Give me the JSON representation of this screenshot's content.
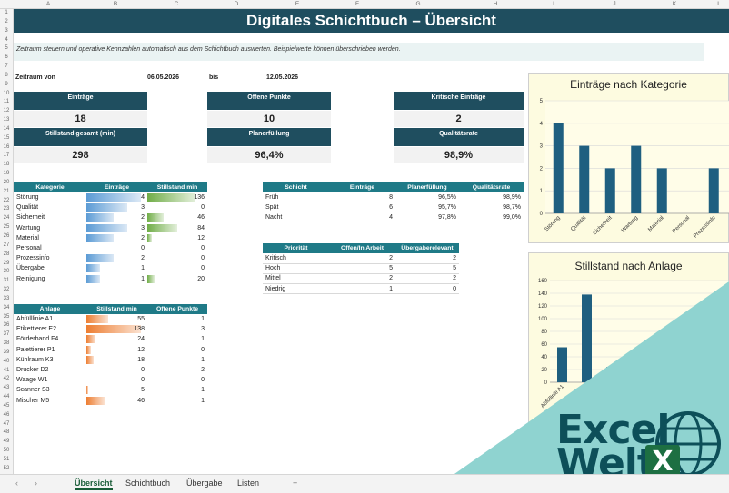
{
  "columns": [
    "A",
    "B",
    "C",
    "D",
    "E",
    "F",
    "G",
    "H",
    "I",
    "J",
    "K",
    "L"
  ],
  "rows": [
    "1",
    "2",
    "3",
    "4",
    "5",
    "6",
    "7",
    "8",
    "9",
    "10",
    "11",
    "12",
    "13",
    "14",
    "15",
    "16",
    "17",
    "18",
    "19",
    "20",
    "21",
    "22",
    "23",
    "24",
    "25",
    "26",
    "27",
    "28",
    "29",
    "30",
    "31",
    "32",
    "33",
    "34",
    "35",
    "36",
    "37",
    "38",
    "39",
    "40",
    "41",
    "42",
    "43",
    "44",
    "45",
    "46",
    "47",
    "48",
    "49",
    "50",
    "51",
    "52"
  ],
  "title": "Digitales Schichtbuch – Übersicht",
  "description": "Zeitraum steuern und operative Kennzahlen automatisch aus dem Schichtbuch auswerten. Beispielwerte können überschrieben werden.",
  "period": {
    "label": "Zeitraum von",
    "from": "06.05.2026",
    "to_label": "bis",
    "to": "12.05.2026"
  },
  "kpis": [
    {
      "label": "Einträge",
      "value": "18"
    },
    {
      "label": "Offene Punkte",
      "value": "10"
    },
    {
      "label": "Kritische Einträge",
      "value": "2"
    },
    {
      "label": "Stillstand gesamt (min)",
      "value": "298"
    },
    {
      "label": "Planerfüllung",
      "value": "96,4%"
    },
    {
      "label": "Qualitätsrate",
      "value": "98,9%"
    }
  ],
  "category_table": {
    "headers": [
      "Kategorie",
      "Einträge",
      "Stillstand min"
    ],
    "rows": [
      {
        "name": "Störung",
        "entries": 4,
        "stop": 136
      },
      {
        "name": "Qualität",
        "entries": 3,
        "stop": 0
      },
      {
        "name": "Sicherheit",
        "entries": 2,
        "stop": 46
      },
      {
        "name": "Wartung",
        "entries": 3,
        "stop": 84
      },
      {
        "name": "Material",
        "entries": 2,
        "stop": 12
      },
      {
        "name": "Personal",
        "entries": 0,
        "stop": 0
      },
      {
        "name": "Prozessinfo",
        "entries": 2,
        "stop": 0
      },
      {
        "name": "Übergabe",
        "entries": 1,
        "stop": 0
      },
      {
        "name": "Reinigung",
        "entries": 1,
        "stop": 20
      }
    ]
  },
  "plant_table": {
    "headers": [
      "Anlage",
      "Stillstand min",
      "Offene Punkte"
    ],
    "rows": [
      {
        "name": "Abfülllinie A1",
        "stop": 55,
        "open": 1
      },
      {
        "name": "Etikettierer E2",
        "stop": 138,
        "open": 3
      },
      {
        "name": "Förderband F4",
        "stop": 24,
        "open": 1
      },
      {
        "name": "Palettierer P1",
        "stop": 12,
        "open": 0
      },
      {
        "name": "Kühlraum K3",
        "stop": 18,
        "open": 1
      },
      {
        "name": "Drucker D2",
        "stop": 0,
        "open": 2
      },
      {
        "name": "Waage W1",
        "stop": 0,
        "open": 0
      },
      {
        "name": "Scanner S3",
        "stop": 5,
        "open": 1
      },
      {
        "name": "Mischer M5",
        "stop": 46,
        "open": 1
      }
    ]
  },
  "shift_table": {
    "headers": [
      "Schicht",
      "Einträge",
      "Planerfüllung",
      "Qualitätsrate"
    ],
    "rows": [
      [
        "Früh",
        "8",
        "96,5%",
        "98,9%"
      ],
      [
        "Spät",
        "6",
        "95,7%",
        "98,7%"
      ],
      [
        "Nacht",
        "4",
        "97,8%",
        "99,0%"
      ]
    ]
  },
  "priority_table": {
    "headers": [
      "Priorität",
      "Offen/In Arbeit",
      "Übergaberelevant"
    ],
    "rows": [
      [
        "Kritisch",
        "2",
        "2"
      ],
      [
        "Hoch",
        "5",
        "5"
      ],
      [
        "Mittel",
        "2",
        "2"
      ],
      [
        "Niedrig",
        "1",
        "0"
      ]
    ]
  },
  "chart_data": [
    {
      "type": "bar",
      "title": "Einträge nach Kategorie",
      "categories": [
        "Störung",
        "Qualität",
        "Sicherheit",
        "Wartung",
        "Material",
        "Personal",
        "Prozessinfo",
        "Über"
      ],
      "values": [
        4,
        3,
        2,
        3,
        2,
        0,
        2,
        1
      ],
      "ylim": [
        0,
        5
      ],
      "yticks": [
        "0",
        "1",
        "2",
        "3",
        "4",
        "5"
      ],
      "color": "#1f5f80"
    },
    {
      "type": "bar",
      "title": "Stillstand nach Anlage",
      "categories": [
        "Abfüllinie A1",
        "Etikettierer E2",
        "Förderband F4"
      ],
      "values": [
        55,
        138,
        24
      ],
      "ylim": [
        0,
        160
      ],
      "yticks": [
        "0",
        "20",
        "40",
        "60",
        "80",
        "100",
        "120",
        "140",
        "160"
      ],
      "color": "#1f5f80"
    }
  ],
  "sheet_tabs": [
    "Übersicht",
    "Schichtbuch",
    "Übergabe",
    "Listen"
  ],
  "add_sheet": "+",
  "logo": {
    "line1": "Excel",
    "line2": "Welt"
  }
}
